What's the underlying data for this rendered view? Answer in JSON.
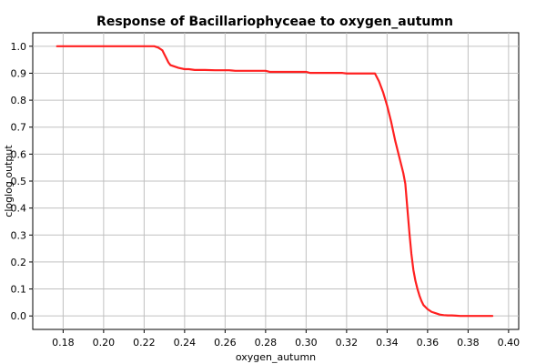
{
  "chart_data": {
    "type": "line",
    "title": "Response of Bacillariophyceae to oxygen_autumn",
    "xlabel": "oxygen_autumn",
    "ylabel": "cloglog output",
    "xlim": [
      0.165,
      0.405
    ],
    "ylim": [
      -0.05,
      1.05
    ],
    "x_ticks": [
      0.18,
      0.2,
      0.22,
      0.24,
      0.26,
      0.28,
      0.3,
      0.32,
      0.34,
      0.36,
      0.38,
      0.4
    ],
    "x_tick_labels": [
      "0.18",
      "0.20",
      "0.22",
      "0.24",
      "0.26",
      "0.28",
      "0.30",
      "0.32",
      "0.34",
      "0.36",
      "0.38",
      "0.40"
    ],
    "y_ticks": [
      0.0,
      0.1,
      0.2,
      0.3,
      0.4,
      0.5,
      0.6,
      0.7,
      0.8,
      0.9,
      1.0
    ],
    "y_tick_labels": [
      "0.0",
      "0.1",
      "0.2",
      "0.3",
      "0.4",
      "0.5",
      "0.6",
      "0.7",
      "0.8",
      "0.9",
      "1.0"
    ],
    "grid": true,
    "series": [
      {
        "color": "#ff2020",
        "x": [
          0.177,
          0.225,
          0.227,
          0.229,
          0.23,
          0.231,
          0.232,
          0.233,
          0.235,
          0.237,
          0.24,
          0.242,
          0.245,
          0.25,
          0.255,
          0.262,
          0.265,
          0.27,
          0.28,
          0.282,
          0.29,
          0.3,
          0.302,
          0.31,
          0.318,
          0.32,
          0.33,
          0.334,
          0.336,
          0.338,
          0.34,
          0.342,
          0.344,
          0.346,
          0.348,
          0.349,
          0.35,
          0.351,
          0.352,
          0.353,
          0.354,
          0.355,
          0.356,
          0.357,
          0.358,
          0.36,
          0.362,
          0.364,
          0.366,
          0.368,
          0.37,
          0.372,
          0.374,
          0.376,
          0.38,
          0.392
        ],
        "y": [
          1.0,
          1.0,
          0.995,
          0.985,
          0.97,
          0.955,
          0.94,
          0.93,
          0.925,
          0.92,
          0.915,
          0.915,
          0.912,
          0.912,
          0.911,
          0.911,
          0.909,
          0.909,
          0.909,
          0.905,
          0.905,
          0.905,
          0.901,
          0.901,
          0.901,
          0.899,
          0.899,
          0.899,
          0.87,
          0.83,
          0.78,
          0.72,
          0.65,
          0.59,
          0.53,
          0.49,
          0.4,
          0.31,
          0.23,
          0.17,
          0.13,
          0.1,
          0.075,
          0.055,
          0.04,
          0.025,
          0.015,
          0.01,
          0.005,
          0.003,
          0.002,
          0.002,
          0.001,
          0.0,
          0.0,
          0.0
        ]
      }
    ]
  }
}
